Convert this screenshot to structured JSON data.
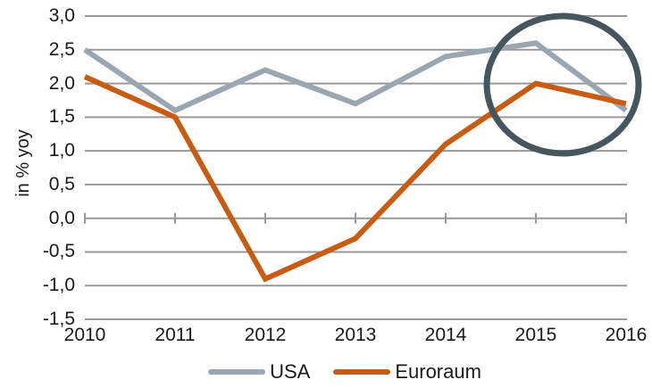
{
  "page": {
    "background_color": "#ffffff"
  },
  "chart_data": {
    "type": "line",
    "title": "",
    "xlabel": "",
    "ylabel": "in % yoy",
    "categories": [
      "2010",
      "2011",
      "2012",
      "2013",
      "2014",
      "2015",
      "2016"
    ],
    "series": [
      {
        "name": "USA",
        "color": "#9AA6B2",
        "values": [
          2.5,
          1.6,
          2.2,
          1.7,
          2.4,
          2.6,
          1.6
        ]
      },
      {
        "name": "Euroraum",
        "color": "#C75C12",
        "values": [
          2.1,
          1.5,
          -0.9,
          -0.3,
          1.1,
          2.0,
          1.7
        ]
      }
    ],
    "ylim": [
      -1.5,
      3.0
    ],
    "y_tick_values": [
      3.0,
      2.5,
      2.0,
      1.5,
      1.0,
      0.5,
      0.0,
      -0.5,
      -1.0,
      -1.5
    ],
    "y_tick_labels": [
      "3,0",
      "2,5",
      "2,0",
      "1,5",
      "1,0",
      "0,5",
      "0,0",
      "-0,5",
      "-1,0",
      "-1,5"
    ],
    "grid": "horizontal",
    "gridline_color": "#999999",
    "axis_text_color": "#1a1a1a",
    "legend_position": "bottom",
    "annotation": {
      "type": "circle-highlight",
      "around_categories": [
        "2015",
        "2016"
      ],
      "color": "#46565F"
    }
  }
}
